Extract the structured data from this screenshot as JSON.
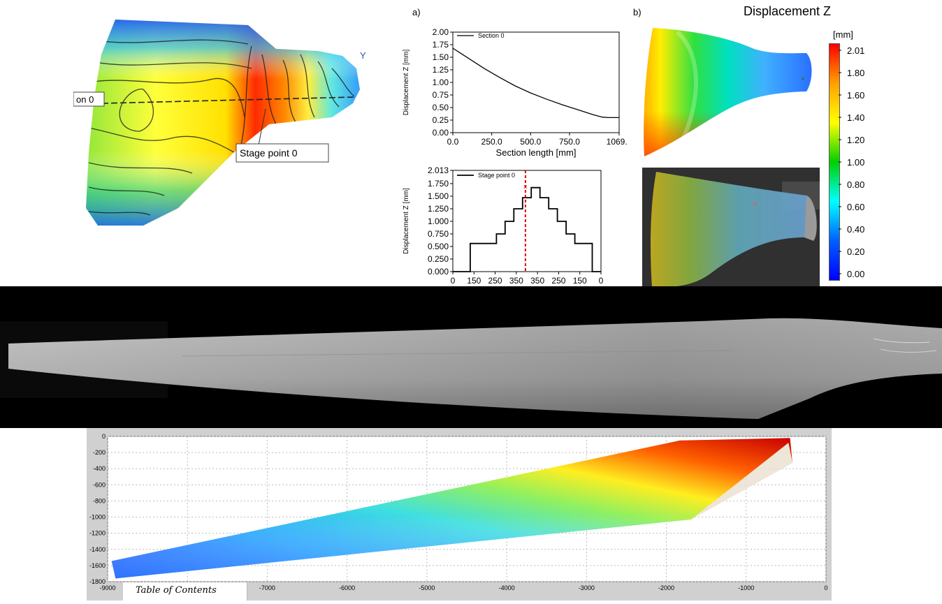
{
  "contour_map": {
    "section_label": "on 0",
    "stage_point_label": "Stage point 0",
    "axis_letter": "Y"
  },
  "panel_a_label": "a)",
  "panel_b_label": "b)",
  "panel_b_title": "Displacement Z",
  "colorbar": {
    "unit": "[mm]",
    "ticks": [
      "2.01",
      "1.80",
      "1.60",
      "1.40",
      "1.20",
      "1.00",
      "0.80",
      "0.60",
      "0.40",
      "0.20",
      "0.00"
    ],
    "colors": [
      "#ff0000",
      "#ffa000",
      "#ffff00",
      "#00d000",
      "#00ffff",
      "#0060ff",
      "#0000ff"
    ]
  },
  "table_of_contents": "Table of Contents",
  "chart_data": [
    {
      "type": "line",
      "legend": "Section 0",
      "xlabel": "Section length [mm]",
      "ylabel": "Displacement Z [mm]",
      "xlim": [
        0,
        1069
      ],
      "ylim": [
        0,
        2.0
      ],
      "xticks": [
        "0.0",
        "250.0",
        "500.0",
        "750.0",
        "1069.0"
      ],
      "xtick_values": [
        0,
        250,
        500,
        750,
        1069
      ],
      "yticks": [
        "2.00",
        "1.75",
        "1.50",
        "1.25",
        "1.00",
        "0.75",
        "0.50",
        "0.25",
        "0.00"
      ],
      "ytick_values": [
        2.0,
        1.75,
        1.5,
        1.25,
        1.0,
        0.75,
        0.5,
        0.25,
        0.0
      ],
      "x": [
        0,
        50,
        100,
        200,
        300,
        400,
        500,
        600,
        700,
        800,
        900,
        960,
        1000,
        1069
      ],
      "y": [
        1.68,
        1.58,
        1.48,
        1.28,
        1.1,
        0.93,
        0.79,
        0.67,
        0.56,
        0.46,
        0.36,
        0.31,
        0.3,
        0.3
      ]
    },
    {
      "type": "line",
      "legend": "Stage point 0",
      "ylabel": "Displacement Z [mm]",
      "ylim": [
        0,
        2.013
      ],
      "xticks": [
        "0",
        "150",
        "250",
        "350",
        "350",
        "250",
        "150",
        "0"
      ],
      "yticks": [
        "2.013",
        "1.750",
        "1.500",
        "1.250",
        "1.000",
        "0.750",
        "0.500",
        "0.250",
        "0.000"
      ],
      "ytick_values": [
        2.013,
        1.75,
        1.5,
        1.25,
        1.0,
        0.75,
        0.5,
        0.25,
        0.0
      ],
      "steps": [
        0,
        0,
        0.56,
        0.56,
        0.56,
        0.75,
        1.0,
        1.25,
        1.47,
        1.67,
        1.47,
        1.25,
        1.0,
        0.75,
        0.56,
        0.56,
        0
      ],
      "marker_position": 0.49,
      "marker_value": 1.69
    },
    {
      "type": "heatmap",
      "xlim": [
        -9000,
        0
      ],
      "ylim": [
        -1800,
        0
      ],
      "xticks": [
        "-9000",
        "-8000",
        "-7000",
        "-6000",
        "-5000",
        "-4000",
        "-3000",
        "-2000",
        "-1000",
        "0"
      ],
      "xtick_values": [
        -9000,
        -8000,
        -7000,
        -6000,
        -5000,
        -4000,
        -3000,
        -2000,
        -1000,
        0
      ],
      "yticks": [
        "0",
        "-200",
        "-400",
        "-600",
        "-800",
        "-1000",
        "-1200",
        "-1400",
        "-1600",
        "-1800"
      ],
      "ytick_values": [
        0,
        -200,
        -400,
        -600,
        -800,
        -1000,
        -1200,
        -1400,
        -1600,
        -1800
      ],
      "grid": true,
      "outline_x": [
        -8950,
        -1830,
        -450,
        -420,
        -470,
        -1690,
        -8900
      ],
      "outline_y": [
        -1545,
        -50,
        -20,
        -330,
        -80,
        -1030,
        -1760
      ]
    }
  ]
}
